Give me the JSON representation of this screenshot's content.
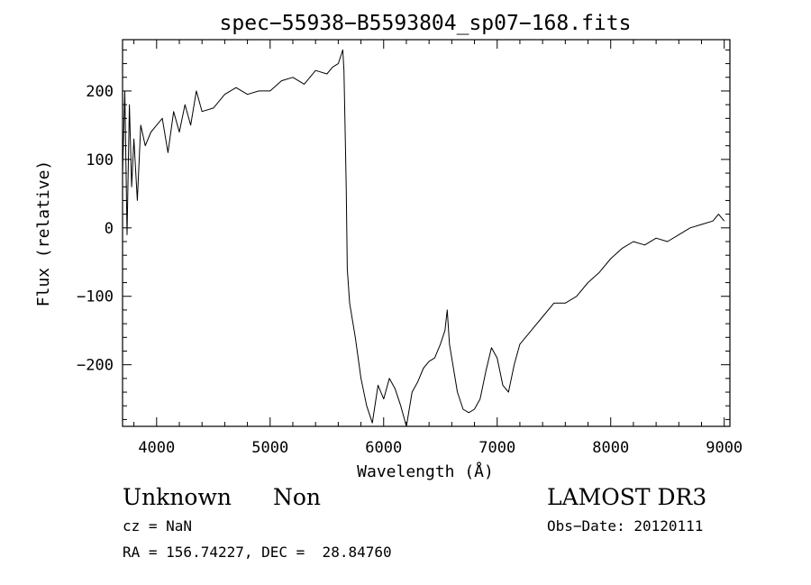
{
  "chart_data": {
    "type": "line",
    "title": "spec−55938−B5593804_sp07−168.fits",
    "xlabel": "Wavelength (Å)",
    "ylabel": "Flux (relative)",
    "xlim": [
      3700,
      9050
    ],
    "ylim": [
      -290,
      275
    ],
    "xticks": [
      4000,
      5000,
      6000,
      7000,
      8000,
      9000
    ],
    "yticks": [
      200,
      100,
      0,
      -100,
      -200
    ],
    "ytick_labels": [
      "200",
      "100",
      "0",
      "−100",
      "−200"
    ],
    "grid": false,
    "series": [
      {
        "x": [
          3700,
          3720,
          3740,
          3760,
          3780,
          3800,
          3830,
          3860,
          3900,
          3950,
          4000,
          4050,
          4100,
          4150,
          4200,
          4250,
          4300,
          4350,
          4400,
          4500,
          4600,
          4700,
          4800,
          4900,
          5000,
          5100,
          5200,
          5300,
          5400,
          5500,
          5550,
          5600,
          5620,
          5640,
          5650,
          5660,
          5670,
          5680,
          5700,
          5750,
          5800,
          5850,
          5900,
          5950,
          6000,
          6050,
          6100,
          6150,
          6200,
          6250,
          6300,
          6350,
          6400,
          6450,
          6500,
          6540,
          6560,
          6580,
          6600,
          6650,
          6700,
          6750,
          6800,
          6850,
          6900,
          6950,
          7000,
          7050,
          7100,
          7150,
          7200,
          7300,
          7400,
          7500,
          7600,
          7700,
          7800,
          7900,
          8000,
          8100,
          8200,
          8300,
          8400,
          8500,
          8600,
          8700,
          8800,
          8900,
          8950,
          9000
        ],
        "y": [
          80,
          200,
          -10,
          180,
          60,
          130,
          40,
          150,
          120,
          140,
          150,
          160,
          110,
          170,
          140,
          180,
          150,
          200,
          170,
          175,
          195,
          205,
          195,
          200,
          200,
          215,
          220,
          210,
          230,
          225,
          235,
          240,
          250,
          260,
          230,
          150,
          60,
          -60,
          -110,
          -160,
          -220,
          -260,
          -285,
          -230,
          -250,
          -220,
          -235,
          -260,
          -290,
          -240,
          -225,
          -205,
          -195,
          -190,
          -170,
          -150,
          -120,
          -170,
          -190,
          -240,
          -265,
          -270,
          -265,
          -250,
          -210,
          -175,
          -190,
          -230,
          -240,
          -200,
          -170,
          -150,
          -130,
          -110,
          -110,
          -100,
          -80,
          -65,
          -45,
          -30,
          -20,
          -25,
          -15,
          -20,
          -10,
          0,
          5,
          10,
          20,
          10
        ]
      }
    ]
  },
  "annotations": {
    "object_class": "Unknown",
    "object_subclass": "Non",
    "redshift": "cz = NaN",
    "coords": "RA = 156.74227, DEC =  28.84760",
    "survey": "LAMOST DR3",
    "obs_date": "Obs−Date: 20120111"
  }
}
